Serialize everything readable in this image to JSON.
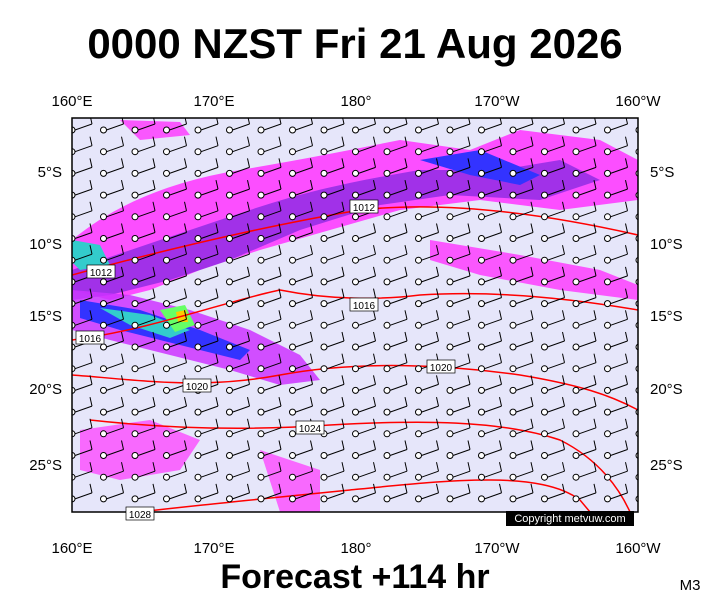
{
  "header": {
    "title": "0000 NZST Fri 21 Aug 2026"
  },
  "map": {
    "longitude_labels": [
      "160°E",
      "170°E",
      "180°",
      "170°W",
      "160°W"
    ],
    "latitude_labels": [
      "5°S",
      "10°S",
      "15°S",
      "20°S",
      "25°S"
    ],
    "isobar_labels": [
      "1012",
      "1012",
      "1016",
      "1016",
      "1020",
      "1020",
      "1024",
      "1028"
    ],
    "copyright": "Copyright metvuw.com"
  },
  "footer": {
    "forecast": "Forecast +114 hr",
    "model": "M3"
  }
}
